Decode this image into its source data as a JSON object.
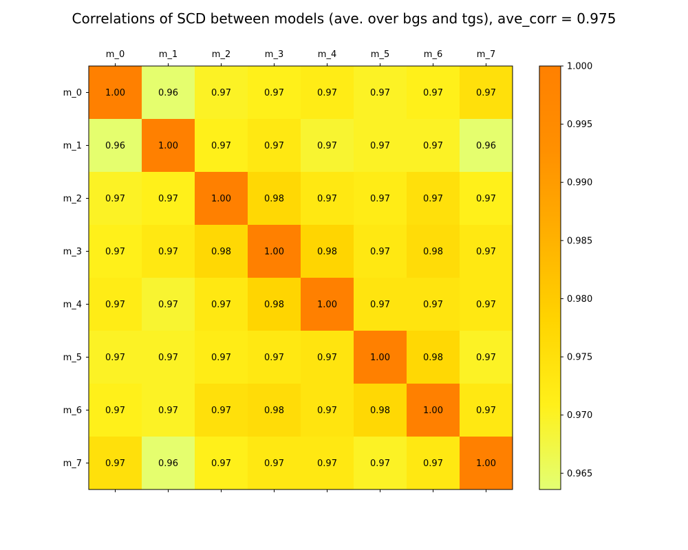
{
  "chart_data": {
    "type": "heatmap",
    "title": "Correlations of SCD between models (ave. over bgs and tgs), ave_corr = 0.975",
    "x_labels": [
      "m_0",
      "m_1",
      "m_2",
      "m_3",
      "m_4",
      "m_5",
      "m_6",
      "m_7"
    ],
    "y_labels": [
      "m_0",
      "m_1",
      "m_2",
      "m_3",
      "m_4",
      "m_5",
      "m_6",
      "m_7"
    ],
    "x_tick_position": "top",
    "values": [
      [
        1.0,
        0.964,
        0.97,
        0.971,
        0.972,
        0.97,
        0.971,
        0.975
      ],
      [
        0.964,
        1.0,
        0.971,
        0.973,
        0.969,
        0.97,
        0.97,
        0.964
      ],
      [
        0.97,
        0.971,
        1.0,
        0.977,
        0.973,
        0.972,
        0.975,
        0.971
      ],
      [
        0.971,
        0.973,
        0.977,
        1.0,
        0.978,
        0.973,
        0.976,
        0.973
      ],
      [
        0.972,
        0.969,
        0.973,
        0.978,
        1.0,
        0.974,
        0.974,
        0.973
      ],
      [
        0.97,
        0.97,
        0.972,
        0.973,
        0.974,
        1.0,
        0.977,
        0.97
      ],
      [
        0.971,
        0.97,
        0.975,
        0.976,
        0.974,
        0.977,
        1.0,
        0.973
      ],
      [
        0.975,
        0.964,
        0.971,
        0.973,
        0.973,
        0.97,
        0.973,
        1.0
      ]
    ],
    "cell_labels": [
      [
        "1.00",
        "0.96",
        "0.97",
        "0.97",
        "0.97",
        "0.97",
        "0.97",
        "0.97"
      ],
      [
        "0.96",
        "1.00",
        "0.97",
        "0.97",
        "0.97",
        "0.97",
        "0.97",
        "0.96"
      ],
      [
        "0.97",
        "0.97",
        "1.00",
        "0.98",
        "0.97",
        "0.97",
        "0.97",
        "0.97"
      ],
      [
        "0.97",
        "0.97",
        "0.98",
        "1.00",
        "0.98",
        "0.97",
        "0.98",
        "0.97"
      ],
      [
        "0.97",
        "0.97",
        "0.97",
        "0.98",
        "1.00",
        "0.97",
        "0.97",
        "0.97"
      ],
      [
        "0.97",
        "0.97",
        "0.97",
        "0.97",
        "0.97",
        "1.00",
        "0.98",
        "0.97"
      ],
      [
        "0.97",
        "0.97",
        "0.97",
        "0.98",
        "0.97",
        "0.98",
        "1.00",
        "0.97"
      ],
      [
        "0.97",
        "0.96",
        "0.97",
        "0.97",
        "0.97",
        "0.97",
        "0.97",
        "1.00"
      ]
    ],
    "colorbar": {
      "min": 0.9636,
      "max": 1.0,
      "ticks": [
        "0.965",
        "0.970",
        "0.975",
        "0.980",
        "0.985",
        "0.990",
        "0.995",
        "1.000"
      ],
      "placement": "right"
    },
    "colormap": [
      "#e3ff73",
      "#fff01a",
      "#ffd400",
      "#ffb000",
      "#ff9000",
      "#ff8000"
    ],
    "grid": false
  }
}
